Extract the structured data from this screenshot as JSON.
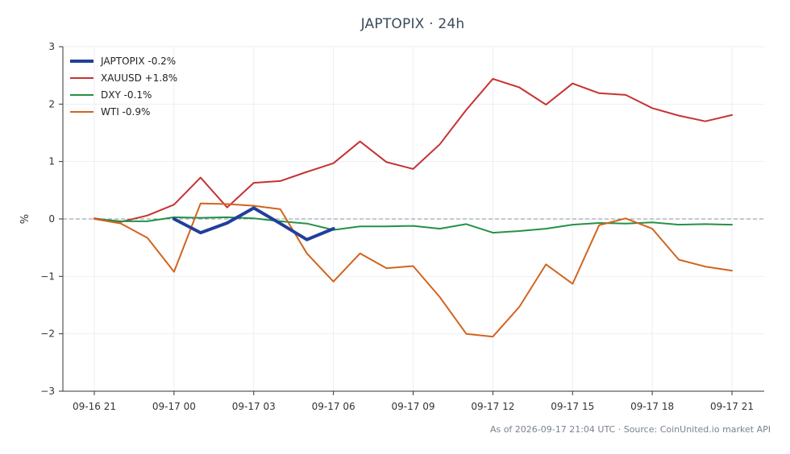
{
  "chart_data": {
    "type": "line",
    "title": "JAPTOPIX · 24h",
    "ylabel": "%",
    "xlabel": "",
    "ylim": [
      -3,
      3
    ],
    "yticks": [
      3,
      2,
      1,
      0,
      -1,
      -2,
      -3
    ],
    "ytick_labels": [
      "3",
      "2",
      "1",
      "0",
      "−1",
      "−2",
      "−3"
    ],
    "xticks": [
      0,
      3,
      6,
      9,
      12,
      15,
      18,
      21,
      24
    ],
    "xtick_labels": [
      "09-16 21",
      "09-17 00",
      "09-17 03",
      "09-17 06",
      "09-17 09",
      "09-17 12",
      "09-17 15",
      "09-17 18",
      "09-17 21"
    ],
    "grid": true,
    "legend_position": "top-left",
    "baseline": 0,
    "series": [
      {
        "name": "JAPTOPIX -0.2%",
        "color": "#213f9a",
        "width": 4,
        "x": [
          3,
          4,
          5,
          6,
          7,
          8,
          9
        ],
        "values": [
          0.0,
          -0.24,
          -0.07,
          0.19,
          -0.08,
          -0.36,
          -0.17
        ]
      },
      {
        "name": "XAUUSD +1.8%",
        "color": "#c63232",
        "width": 2,
        "x": [
          0,
          1,
          2,
          3,
          4,
          5,
          6,
          7,
          8,
          9,
          10,
          11,
          12,
          13,
          14,
          15,
          16,
          17,
          18,
          19,
          20,
          21,
          22,
          23,
          24
        ],
        "values": [
          0.01,
          -0.05,
          0.06,
          0.25,
          0.72,
          0.2,
          0.63,
          0.66,
          0.82,
          0.97,
          1.35,
          0.99,
          0.87,
          1.3,
          1.9,
          2.44,
          2.29,
          1.99,
          2.36,
          2.19,
          2.16,
          1.93,
          1.8,
          1.7,
          1.81
        ]
      },
      {
        "name": "DXY -0.1%",
        "color": "#239245",
        "width": 2,
        "x": [
          0,
          1,
          2,
          3,
          4,
          5,
          6,
          7,
          8,
          9,
          10,
          11,
          12,
          13,
          14,
          15,
          16,
          17,
          18,
          19,
          20,
          21,
          22,
          23,
          24
        ],
        "values": [
          0.0,
          -0.04,
          -0.04,
          0.03,
          0.02,
          0.03,
          0.01,
          -0.04,
          -0.08,
          -0.19,
          -0.13,
          -0.13,
          -0.12,
          -0.17,
          -0.09,
          -0.24,
          -0.21,
          -0.17,
          -0.1,
          -0.07,
          -0.08,
          -0.06,
          -0.1,
          -0.09,
          -0.1
        ]
      },
      {
        "name": "WTI -0.9%",
        "color": "#d2641e",
        "width": 2,
        "x": [
          0,
          1,
          2,
          3,
          4,
          5,
          6,
          7,
          8,
          9,
          10,
          11,
          12,
          13,
          14,
          15,
          16,
          17,
          18,
          19,
          20,
          21,
          22,
          23,
          24
        ],
        "values": [
          0.0,
          -0.08,
          -0.33,
          -0.92,
          0.27,
          0.26,
          0.23,
          0.17,
          -0.6,
          -1.09,
          -0.6,
          -0.86,
          -0.82,
          -1.36,
          -2.0,
          -2.05,
          -1.53,
          -0.79,
          -1.13,
          -0.11,
          0.01,
          -0.17,
          -0.71,
          -0.83,
          -0.9
        ]
      }
    ]
  },
  "footnote": "As of 2026-09-17 21:04 UTC · Source: CoinUnited.io market API"
}
